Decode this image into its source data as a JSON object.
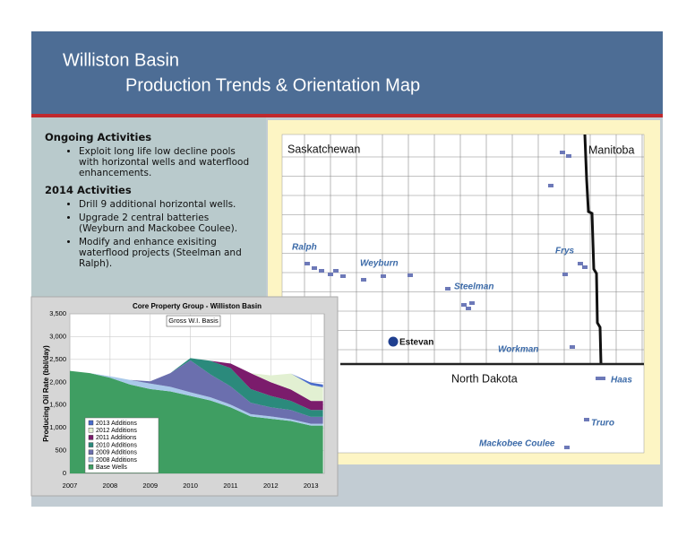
{
  "header": {
    "title": "Williston Basin",
    "subtitle": "Production Trends & Orientation Map"
  },
  "activities": [
    {
      "heading": "Ongoing Activities",
      "items": [
        "Exploit long life low decline pools with horizontal wells and waterflood enhancements."
      ]
    },
    {
      "heading": "2014 Activities",
      "items": [
        "Drill 9 additional horizontal wells.",
        "Upgrade 2 central batteries (Weyburn and Mackobee Coulee).",
        "Modify and enhance exisiting waterflood projects (Steelman and Ralph)."
      ]
    }
  ],
  "map": {
    "regions": [
      "Saskatchewan",
      "Manitoba",
      "North Dakota"
    ],
    "city": "Estevan",
    "fields": [
      "Ralph",
      "Weyburn",
      "Steelman",
      "Frys",
      "Workman",
      "Haas",
      "Truro",
      "Mackobee Coulee"
    ]
  },
  "chart_data": {
    "type": "stacked_area",
    "title": "Core Property Group - Williston Basin",
    "subtitle": "Gross W.I. Basis",
    "y_label": "Producing Oil Rate (bbl/day)",
    "x": [
      2007,
      2007.5,
      2008,
      2008.5,
      2009,
      2009.5,
      2010,
      2010.5,
      2011,
      2011.5,
      2012,
      2012.5,
      2013,
      2013.3
    ],
    "xlim": [
      2007,
      2013.33
    ],
    "xticks": [
      2007,
      2008,
      2009,
      2010,
      2011,
      2012,
      2013
    ],
    "ylim": [
      0,
      3500
    ],
    "yticks": [
      0,
      500,
      {
        "value": 1000,
        "label": "1,000"
      },
      {
        "value": 1500,
        "label": "1,500"
      },
      {
        "value": 2000,
        "label": "2,000"
      },
      {
        "value": 2500,
        "label": "2,500"
      },
      {
        "value": 3000,
        "label": "3,000"
      },
      {
        "value": 3500,
        "label": "3,500"
      }
    ],
    "grid": true,
    "series": [
      {
        "name": "Base Wells",
        "color": "#3f9e62",
        "values": [
          2250,
          2200,
          2100,
          1950,
          1850,
          1800,
          1700,
          1600,
          1450,
          1250,
          1200,
          1150,
          1050,
          1050
        ]
      },
      {
        "name": "2008 Additions",
        "color": "#a9c9ea",
        "values": [
          0,
          0,
          30,
          100,
          120,
          100,
          80,
          70,
          60,
          50,
          50,
          40,
          40,
          40
        ]
      },
      {
        "name": "2009 Additions",
        "color": "#6b6fae",
        "values": [
          0,
          0,
          0,
          0,
          50,
          300,
          700,
          500,
          400,
          250,
          200,
          200,
          150,
          150
        ]
      },
      {
        "name": "2010 Additions",
        "color": "#2b8a7c",
        "values": [
          0,
          0,
          0,
          0,
          0,
          0,
          50,
          300,
          400,
          300,
          250,
          200,
          150,
          150
        ]
      },
      {
        "name": "2011 Additions",
        "color": "#7b1c6c",
        "values": [
          0,
          0,
          0,
          0,
          0,
          0,
          0,
          0,
          100,
          350,
          300,
          250,
          200,
          200
        ]
      },
      {
        "name": "2012 Additions",
        "color": "#e2f0d2",
        "values": [
          0,
          0,
          0,
          0,
          0,
          0,
          0,
          0,
          0,
          0,
          150,
          350,
          350,
          300
        ]
      },
      {
        "name": "2013 Additions",
        "color": "#4a6ccb",
        "values": [
          0,
          0,
          0,
          0,
          0,
          0,
          0,
          0,
          0,
          0,
          0,
          0,
          50,
          60
        ]
      }
    ]
  }
}
